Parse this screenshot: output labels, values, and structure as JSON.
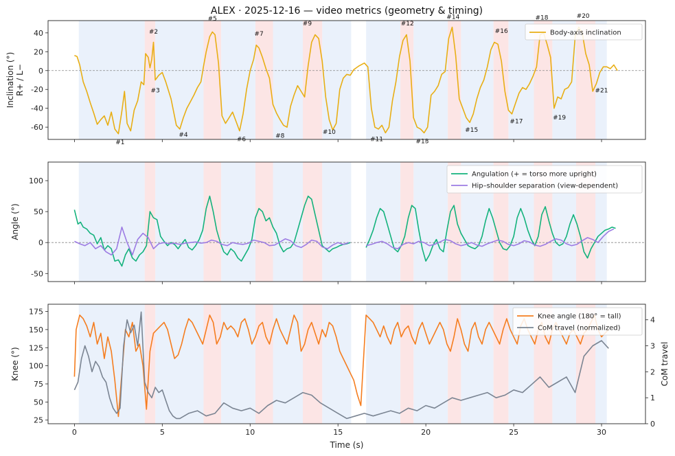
{
  "title": "ALEX · 2025-12-16 — video metrics (geometry & timing)",
  "xlabel": "Time (s)",
  "x_ticks": [
    0,
    5,
    10,
    15,
    20,
    25,
    30
  ],
  "xlim": [
    -1.5,
    32.5
  ],
  "colors": {
    "phase_blue": "#dce7f9",
    "phase_pink": "#fbe1e1",
    "inclination": "#e8ae14",
    "angulation": "#13b27c",
    "separation": "#9c7be3",
    "knee": "#f57d1f",
    "com": "#7a8492",
    "zero_line": "#888888"
  },
  "phases": {
    "blue": [
      [
        0.25,
        4.0
      ],
      [
        4.6,
        7.35
      ],
      [
        8.35,
        10.3
      ],
      [
        11.3,
        13.0
      ],
      [
        14.1,
        15.75
      ],
      [
        16.6,
        18.55
      ],
      [
        19.3,
        21.25
      ],
      [
        22.0,
        23.85
      ],
      [
        24.7,
        26.15
      ],
      [
        27.2,
        28.55
      ],
      [
        29.65,
        30.3
      ]
    ],
    "pink": [
      [
        4.0,
        4.6
      ],
      [
        7.35,
        8.35
      ],
      [
        10.3,
        11.3
      ],
      [
        13.0,
        14.1
      ],
      [
        18.55,
        19.3
      ],
      [
        21.25,
        22.0
      ],
      [
        23.85,
        24.7
      ],
      [
        26.15,
        27.2
      ],
      [
        28.55,
        29.65
      ]
    ]
  },
  "chart_data": [
    {
      "type": "line",
      "panel": "top",
      "ylabel_lines": [
        "Inclination (°)",
        "R+ / L−"
      ],
      "ylim": [
        -73,
        53
      ],
      "y_ticks": [
        -60,
        -40,
        -20,
        0,
        20,
        40
      ],
      "y_tick_labels": [
        "-60",
        "-40",
        "-20",
        "0",
        "20",
        "40"
      ],
      "legend": "top-right",
      "series": [
        {
          "name": "Body-axis inclination",
          "x": [
            0,
            0.15,
            0.3,
            0.5,
            0.7,
            0.9,
            1.1,
            1.3,
            1.5,
            1.7,
            1.9,
            2.1,
            2.3,
            2.5,
            2.7,
            2.85,
            3.0,
            3.2,
            3.4,
            3.6,
            3.8,
            3.95,
            4.05,
            4.2,
            4.3,
            4.4,
            4.5,
            4.6,
            4.8,
            5.0,
            5.2,
            5.5,
            5.8,
            6.0,
            6.2,
            6.4,
            6.6,
            6.8,
            7.0,
            7.2,
            7.35,
            7.5,
            7.7,
            7.85,
            8.0,
            8.2,
            8.4,
            8.6,
            8.8,
            9.0,
            9.2,
            9.4,
            9.6,
            9.8,
            10.0,
            10.2,
            10.35,
            10.5,
            10.7,
            10.9,
            11.1,
            11.3,
            11.5,
            11.7,
            11.9,
            12.1,
            12.3,
            12.5,
            12.7,
            12.9,
            13.1,
            13.3,
            13.5,
            13.7,
            13.9,
            14.1,
            14.3,
            14.5,
            14.7,
            14.9,
            15.1,
            15.3,
            15.5,
            15.7,
            15.9,
            16.2,
            16.5,
            16.7,
            16.9,
            17.1,
            17.3,
            17.5,
            17.7,
            17.9,
            18.1,
            18.3,
            18.5,
            18.7,
            18.9,
            19.1,
            19.3,
            19.5,
            19.7,
            19.9,
            20.1,
            20.3,
            20.5,
            20.7,
            20.9,
            21.1,
            21.3,
            21.5,
            21.7,
            21.9,
            22.1,
            22.3,
            22.5,
            22.7,
            22.9,
            23.1,
            23.3,
            23.5,
            23.7,
            23.9,
            24.1,
            24.3,
            24.5,
            24.7,
            24.9,
            25.1,
            25.3,
            25.5,
            25.7,
            25.9,
            26.1,
            26.3,
            26.5,
            26.7,
            26.9,
            27.1,
            27.3,
            27.5,
            27.7,
            27.9,
            28.1,
            28.3,
            28.5,
            28.7,
            28.9,
            29.1,
            29.3,
            29.5,
            29.7,
            29.9,
            30.1,
            30.3,
            30.5,
            30.7,
            30.9
          ],
          "y": [
            16,
            15,
            6,
            -12,
            -22,
            -34,
            -45,
            -57,
            -52,
            -48,
            -58,
            -44,
            -62,
            -67,
            -43,
            -22,
            -56,
            -64,
            -42,
            -32,
            -12,
            -15,
            18,
            14,
            3,
            12,
            30,
            -10,
            -5,
            -2,
            -12,
            -30,
            -58,
            -62,
            -50,
            -40,
            -33,
            -26,
            -18,
            -12,
            5,
            20,
            36,
            41,
            38,
            8,
            -48,
            -56,
            -50,
            -44,
            -54,
            -64,
            -46,
            -20,
            0,
            12,
            27,
            24,
            14,
            2,
            -8,
            -36,
            -45,
            -52,
            -58,
            -60,
            -38,
            -26,
            -16,
            -22,
            -28,
            5,
            30,
            38,
            34,
            10,
            -28,
            -52,
            -63,
            -56,
            -20,
            -8,
            -4,
            -5,
            1,
            5,
            8,
            4,
            -40,
            -60,
            -62,
            -58,
            -66,
            -60,
            -32,
            -12,
            15,
            32,
            38,
            10,
            -50,
            -60,
            -62,
            -66,
            -60,
            -26,
            -22,
            -16,
            -4,
            -1,
            34,
            46,
            16,
            -30,
            -40,
            -50,
            -55,
            -46,
            -30,
            -18,
            -10,
            4,
            22,
            30,
            28,
            10,
            -22,
            -42,
            -46,
            -35,
            -24,
            -18,
            -20,
            -14,
            -6,
            4,
            38,
            40,
            28,
            14,
            -40,
            -28,
            -30,
            -20,
            -18,
            -12,
            36,
            46,
            40,
            18,
            6,
            -22,
            -14,
            -2,
            4,
            4,
            2,
            6,
            0
          ],
          "color": "#e8ae14"
        }
      ],
      "annotations": [
        {
          "label": "#1",
          "x": 2.6,
          "y": -78
        },
        {
          "label": "#2",
          "x": 4.5,
          "y": 39
        },
        {
          "label": "#3",
          "x": 4.6,
          "y": -23
        },
        {
          "label": "#4",
          "x": 6.2,
          "y": -70
        },
        {
          "label": "#5",
          "x": 7.85,
          "y": 53
        },
        {
          "label": "#6",
          "x": 9.5,
          "y": -75
        },
        {
          "label": "#7",
          "x": 10.5,
          "y": 37
        },
        {
          "label": "#8",
          "x": 11.7,
          "y": -71
        },
        {
          "label": "#9",
          "x": 13.25,
          "y": 48
        },
        {
          "label": "#10",
          "x": 14.5,
          "y": -67
        },
        {
          "label": "#11",
          "x": 17.2,
          "y": -75
        },
        {
          "label": "#12",
          "x": 18.95,
          "y": 48
        },
        {
          "label": "#13",
          "x": 19.8,
          "y": -77
        },
        {
          "label": "#14",
          "x": 21.55,
          "y": 55
        },
        {
          "label": "#15",
          "x": 22.6,
          "y": -65
        },
        {
          "label": "#16",
          "x": 24.3,
          "y": 40
        },
        {
          "label": "#17",
          "x": 25.15,
          "y": -56
        },
        {
          "label": "#18",
          "x": 26.6,
          "y": 54
        },
        {
          "label": "#19",
          "x": 27.6,
          "y": -52
        },
        {
          "label": "#20",
          "x": 28.95,
          "y": 56
        },
        {
          "label": "#21",
          "x": 30.0,
          "y": -23
        }
      ]
    },
    {
      "type": "line",
      "panel": "middle",
      "ylabel_lines": [
        "Angle (°)"
      ],
      "ylim": [
        -63,
        130
      ],
      "y_ticks": [
        -50,
        0,
        50,
        100
      ],
      "y_tick_labels": [
        "-50",
        "0",
        "50",
        "100"
      ],
      "legend": "top-right",
      "series": [
        {
          "name": "Angulation (+ = torso more upright)",
          "color": "#13b27c",
          "segments": [
            {
              "x": [
                0,
                0.2,
                0.35,
                0.5,
                0.7,
                0.9,
                1.1,
                1.3
              ],
              "y": [
                53,
                30,
                35,
                25,
                25,
                18,
                10,
                12
              ]
            },
            {
              "x": [
                1.3,
                1.5,
                1.7,
                1.9
              ],
              "y": [
                -5,
                12,
                -8,
                6
              ]
            },
            {
              "x": [
                1.9,
                2.1,
                2.25,
                2.4
              ],
              "y": [
                -35,
                -28,
                -40,
                -42
              ]
            },
            {
              "x": [
                2.5,
                2.55
              ],
              "y": [
                -52,
                -55
              ]
            },
            {
              "x": [
                1.75,
                1.85
              ],
              "y": [
                -39,
                -45
              ]
            },
            {
              "x": [
                1.5,
                1.6
              ],
              "y": [
                -25,
                -30
              ]
            },
            {
              "x": [
                1.75,
                1.85
              ],
              "y": [
                -39,
                -45
              ]
            },
            {
              "x": [
                2.5,
                2.55
              ],
              "y": [
                -52,
                -55
              ]
            },
            {
              "x": [
                1.75,
                1.85
              ],
              "y": [
                -39,
                -45
              ]
            },
            {
              "x": [
                2.5,
                2.55
              ],
              "y": [
                -52,
                -55
              ]
            },
            {
              "x": [
                1.75,
                1.85
              ],
              "y": [
                -39,
                -45
              ]
            },
            {
              "x": [
                2.5,
                2.55
              ],
              "y": [
                -52,
                -55
              ]
            },
            {
              "x": [
                1.75,
                1.85
              ],
              "y": [
                -39,
                -45
              ]
            },
            {
              "x": [
                2.5,
                2.55
              ],
              "y": [
                -52,
                -55
              ]
            },
            {
              "x": [
                1.75,
                1.85
              ],
              "y": [
                -39,
                -45
              ]
            },
            {
              "x": [
                2.5,
                2.55
              ],
              "y": [
                -52,
                -55
              ]
            },
            {
              "x": [
                1.75,
                1.85
              ],
              "y": [
                -39,
                -45
              ]
            },
            {
              "x": [
                2.5,
                2.55
              ],
              "y": [
                -52,
                -55
              ]
            },
            {
              "x": [
                1.75,
                1.85
              ],
              "y": [
                -39,
                -45
              ]
            },
            {
              "x": [
                2.5,
                2.55
              ],
              "y": [
                -52,
                -55
              ]
            },
            {
              "x": [
                1.75,
                1.85
              ],
              "y": [
                -39,
                -45
              ]
            },
            {
              "x": [
                2.5,
                2.55
              ],
              "y": [
                -52,
                -55
              ]
            },
            {
              "x": [
                1.75,
                1.85
              ],
              "y": [
                -39,
                -45
              ]
            },
            {
              "x": [
                2.5,
                2.55
              ],
              "y": [
                -52,
                -55
              ]
            },
            {
              "x": [
                1.75,
                1.85
              ],
              "y": [
                -39,
                -45
              ]
            },
            {
              "x": [
                2.5,
                2.55
              ],
              "y": [
                -52,
                -55
              ]
            },
            {
              "x": [
                1.75,
                1.85
              ],
              "y": [
                -39,
                -45
              ]
            },
            {
              "x": [
                2.5,
                2.55
              ],
              "y": [
                -52,
                -55
              ]
            },
            {
              "x": [
                1.75,
                1.85
              ],
              "y": [
                -39,
                -45
              ]
            },
            {
              "x": [
                2.5,
                2.55
              ],
              "y": [
                -52,
                -55
              ]
            },
            {
              "x": [
                1.75,
                1.85
              ],
              "y": [
                -39,
                -45
              ]
            },
            {
              "x": [
                2.5,
                2.55
              ],
              "y": [
                -52,
                -55
              ]
            },
            {
              "x": [
                1.75,
                1.85
              ],
              "y": [
                -39,
                -45
              ]
            },
            {
              "x": [
                2.5,
                2.55
              ],
              "y": [
                -52,
                -55
              ]
            },
            {
              "x": [
                1.75,
                1.85
              ],
              "y": [
                -39,
                -45
              ]
            },
            {
              "x": [
                2.5,
                2.55
              ],
              "y": [
                -52,
                -55
              ]
            },
            {
              "x": [
                1.75,
                1.85
              ],
              "y": [
                -39,
                -45
              ]
            },
            {
              "x": [
                2.5,
                2.55
              ],
              "y": [
                -52,
                -55
              ]
            }
          ]
        }
      ]
    }
  ]
}
